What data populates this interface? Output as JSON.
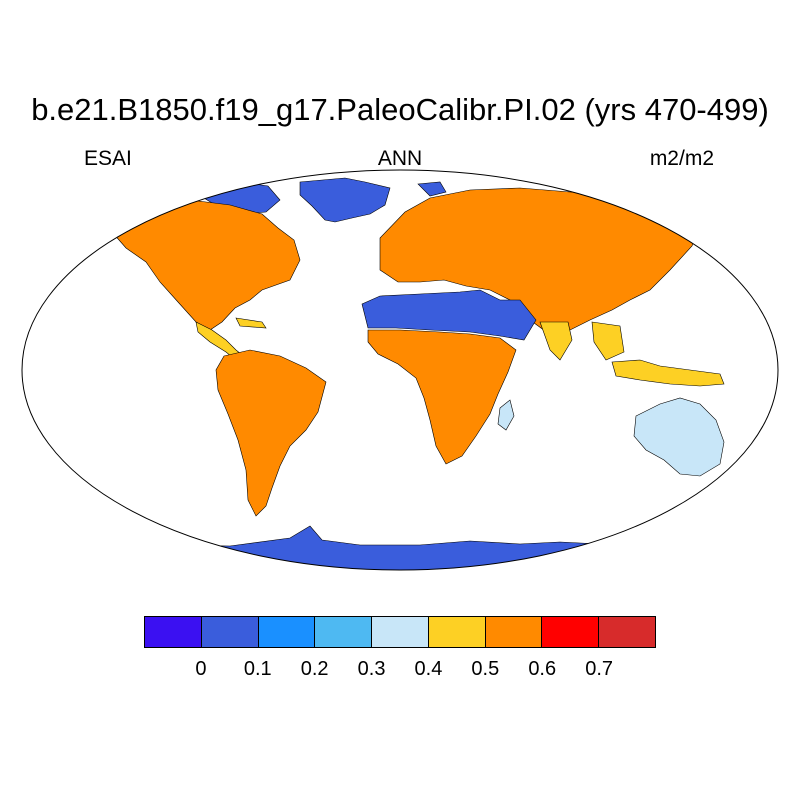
{
  "header": {
    "title": "b.e21.B1850.f19_g17.PaleoCalibr.PI.02 (yrs 470-499)",
    "left_label": "ESAI",
    "center_label": "ANN",
    "right_label": "m2/m2"
  },
  "colorbar": {
    "colors": [
      "#3b10f2",
      "#3a5ddc",
      "#1a90ff",
      "#4eb9f2",
      "#c8e6f8",
      "#fdd024",
      "#ff8a00",
      "#ff0000",
      "#d72b2b"
    ],
    "ticks": [
      "0",
      "0.1",
      "0.2",
      "0.3",
      "0.4",
      "0.5",
      "0.6",
      "0.7"
    ]
  },
  "map_colors": {
    "ocean": "#ffffff",
    "ice": "#3a5ddc",
    "outline": "#000000"
  }
}
